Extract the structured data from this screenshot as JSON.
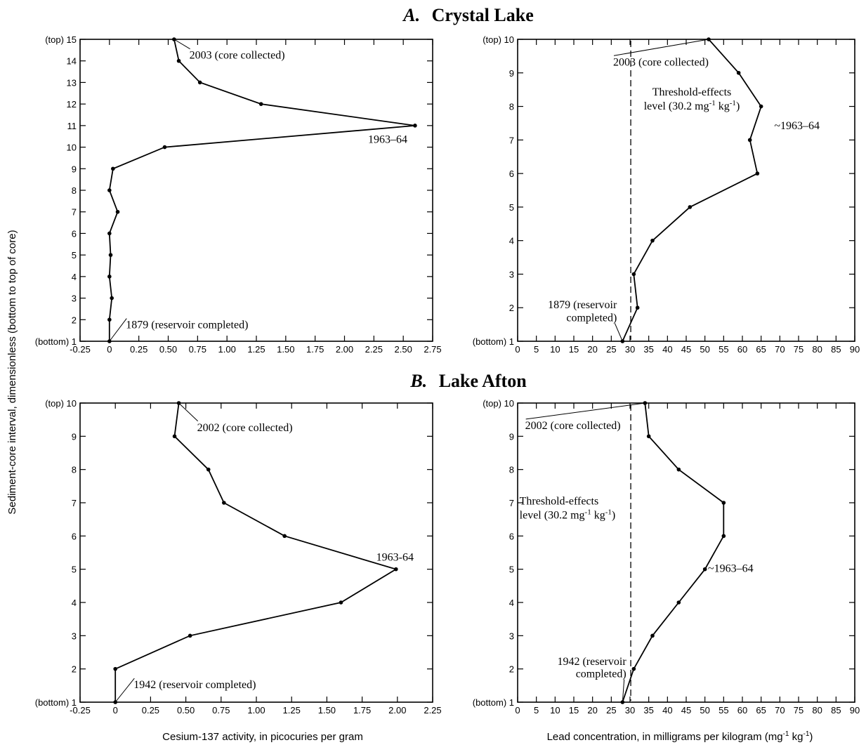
{
  "figure": {
    "shared_ylabel": "Sediment-core interval, dimensionless (bottom to top of core)",
    "shared_xlabel_left": "Cesium-137 activity, in picocuries per gram",
    "shared_xlabel_right": "Lead concentration, in milligrams per kilogram (mg-1 kg-1)",
    "panels": [
      {
        "letter": "A.",
        "name": "Crystal Lake"
      },
      {
        "letter": "B.",
        "name": "Lake Afton"
      }
    ]
  },
  "chart_data": [
    {
      "type": "line",
      "panel": "A. Crystal Lake",
      "xlabel": "",
      "ylabel": "Sediment-core interval, dimensionless (bottom to top of core)",
      "xlim": [
        -0.25,
        2.75
      ],
      "ylim": [
        1,
        15
      ],
      "xticks": [
        -0.25,
        0,
        0.25,
        0.5,
        0.75,
        1.0,
        1.25,
        1.5,
        1.75,
        2.0,
        2.25,
        2.5,
        2.75
      ],
      "xtick_labels": [
        "-0.25",
        "0",
        "0.25",
        "0.50",
        "0.75",
        "1.00",
        "1.25",
        "1.50",
        "1.75",
        "2.00",
        "2.25",
        "2.50",
        "2.75"
      ],
      "yticks": [
        1,
        2,
        3,
        4,
        5,
        6,
        7,
        8,
        9,
        10,
        11,
        12,
        13,
        14,
        15
      ],
      "ytick_labels": [
        "(bottom) 1",
        "2",
        "3",
        "4",
        "5",
        "6",
        "7",
        "8",
        "9",
        "10",
        "11",
        "12",
        "13",
        "14",
        "(top) 15"
      ],
      "x": [
        0.0,
        0.0,
        0.02,
        0.0,
        0.01,
        0.0,
        0.07,
        0.0,
        0.03,
        0.47,
        2.6,
        1.29,
        0.77,
        0.59,
        0.55
      ],
      "y": [
        1,
        2,
        3,
        4,
        5,
        6,
        7,
        8,
        9,
        10,
        11,
        12,
        13,
        14,
        15
      ],
      "annotations": [
        {
          "text": "2003 (core collected)",
          "x": 0.55,
          "y": 15,
          "tx": 0.68,
          "ty": 14.1,
          "anchor": "start",
          "leader": true
        },
        {
          "text": "1963–64",
          "x": 2.6,
          "y": 11,
          "tx": 2.2,
          "ty": 10.2,
          "anchor": "start",
          "leader": false
        },
        {
          "text": "1879 (reservoir completed)",
          "x": 0.0,
          "y": 1,
          "tx": 0.14,
          "ty": 1.6,
          "anchor": "start",
          "leader": true
        }
      ]
    },
    {
      "type": "line",
      "panel": "A. Crystal Lake",
      "xlabel": "",
      "xlim": [
        0,
        90
      ],
      "ylim": [
        1,
        10
      ],
      "xticks": [
        0,
        5,
        10,
        15,
        20,
        25,
        30,
        35,
        40,
        45,
        50,
        55,
        60,
        65,
        70,
        75,
        80,
        85,
        90
      ],
      "xtick_labels": [
        "0",
        "5",
        "10",
        "15",
        "20",
        "25",
        "30",
        "35",
        "40",
        "45",
        "50",
        "55",
        "60",
        "65",
        "70",
        "75",
        "80",
        "85",
        "90"
      ],
      "yticks": [
        1,
        2,
        3,
        4,
        5,
        6,
        7,
        8,
        9,
        10
      ],
      "ytick_labels": [
        "(bottom) 1",
        "2",
        "3",
        "4",
        "5",
        "6",
        "7",
        "8",
        "9",
        "(top) 10"
      ],
      "x": [
        28,
        32,
        31,
        36,
        46,
        64,
        62,
        65,
        59,
        51
      ],
      "y": [
        1,
        2,
        3,
        4,
        5,
        6,
        7,
        8,
        9,
        10
      ],
      "threshold": {
        "x": 30.2,
        "label_line1": "Threshold-effects",
        "label_line2": "level (30.2 mg-1 kg-1)"
      },
      "annotations": [
        {
          "text": "2003 (core collected)",
          "x": 51,
          "y": 10,
          "tx": 25.5,
          "ty": 9.22,
          "anchor": "start",
          "leader": true
        },
        {
          "text": "~1963–64",
          "x": 65,
          "y": 8,
          "tx": 68.5,
          "ty": 7.32,
          "anchor": "start",
          "leader": false
        },
        {
          "text": "1879 (reservoir",
          "x": 28,
          "y": 1,
          "tx": 26.5,
          "ty": 1.98,
          "anchor": "end",
          "leader": false
        },
        {
          "text": "completed)",
          "x": 28,
          "y": 1,
          "tx": 26.5,
          "ty": 1.6,
          "anchor": "end",
          "leader": true
        }
      ]
    },
    {
      "type": "line",
      "panel": "B. Lake Afton",
      "xlabel": "Cesium-137 activity, in picocuries per gram",
      "xlim": [
        -0.25,
        2.25
      ],
      "ylim": [
        1,
        10
      ],
      "xticks": [
        -0.25,
        0,
        0.25,
        0.5,
        0.75,
        1.0,
        1.25,
        1.5,
        1.75,
        2.0,
        2.25
      ],
      "xtick_labels": [
        "-0.25",
        "0",
        "0.25",
        "0.50",
        "0.75",
        "1.00",
        "1.25",
        "1.50",
        "1.75",
        "2.00",
        "2.25"
      ],
      "yticks": [
        1,
        2,
        3,
        4,
        5,
        6,
        7,
        8,
        9,
        10
      ],
      "ytick_labels": [
        "(bottom) 1",
        "2",
        "3",
        "4",
        "5",
        "6",
        "7",
        "8",
        "9",
        "(top) 10"
      ],
      "x": [
        0.0,
        0.0,
        0.53,
        1.6,
        1.99,
        1.2,
        0.77,
        0.66,
        0.42,
        0.45
      ],
      "y": [
        1,
        2,
        3,
        4,
        5,
        6,
        7,
        8,
        9,
        10
      ],
      "annotations": [
        {
          "text": "2002 (core collected)",
          "x": 0.45,
          "y": 10,
          "tx": 0.58,
          "ty": 9.16,
          "anchor": "start",
          "leader": true
        },
        {
          "text": "1963-64",
          "x": 1.99,
          "y": 5,
          "tx": 1.85,
          "ty": 5.26,
          "anchor": "start",
          "leader": false
        },
        {
          "text": "1942 (reservoir completed)",
          "x": 0.0,
          "y": 1,
          "tx": 0.13,
          "ty": 1.42,
          "anchor": "start",
          "leader": true
        }
      ]
    },
    {
      "type": "line",
      "panel": "B. Lake Afton",
      "xlabel": "Lead concentration, in milligrams per kilogram (mg-1 kg-1)",
      "xlim": [
        0,
        90
      ],
      "ylim": [
        1,
        10
      ],
      "xticks": [
        0,
        5,
        10,
        15,
        20,
        25,
        30,
        35,
        40,
        45,
        50,
        55,
        60,
        65,
        70,
        75,
        80,
        85,
        90
      ],
      "xtick_labels": [
        "0",
        "5",
        "10",
        "15",
        "20",
        "25",
        "30",
        "35",
        "40",
        "45",
        "50",
        "55",
        "60",
        "65",
        "70",
        "75",
        "80",
        "85",
        "90"
      ],
      "yticks": [
        1,
        2,
        3,
        4,
        5,
        6,
        7,
        8,
        9,
        10
      ],
      "ytick_labels": [
        "(bottom) 1",
        "2",
        "3",
        "4",
        "5",
        "6",
        "7",
        "8",
        "9",
        "(top) 10"
      ],
      "x": [
        28,
        31,
        36,
        43,
        50,
        55,
        55,
        43,
        35,
        34
      ],
      "y": [
        1,
        2,
        3,
        4,
        5,
        6,
        7,
        8,
        9,
        10
      ],
      "threshold": {
        "x": 30.2,
        "label_line1": "Threshold-effects",
        "label_line2": "level (30.2 mg-1 kg-1)"
      },
      "annotations": [
        {
          "text": "2002 (core collected)",
          "x": 34,
          "y": 10,
          "tx": 2,
          "ty": 9.22,
          "anchor": "start",
          "leader": true
        },
        {
          "text": "~1963–64",
          "x": 50,
          "y": 5,
          "tx": 50.8,
          "ty": 4.92,
          "anchor": "start",
          "leader": false
        },
        {
          "text": "1942 (reservoir",
          "x": 28,
          "y": 1,
          "tx": 29,
          "ty": 2.12,
          "anchor": "end",
          "leader": false
        },
        {
          "text": "completed)",
          "x": 28,
          "y": 1,
          "tx": 29,
          "ty": 1.75,
          "anchor": "end",
          "leader": true
        }
      ]
    }
  ]
}
